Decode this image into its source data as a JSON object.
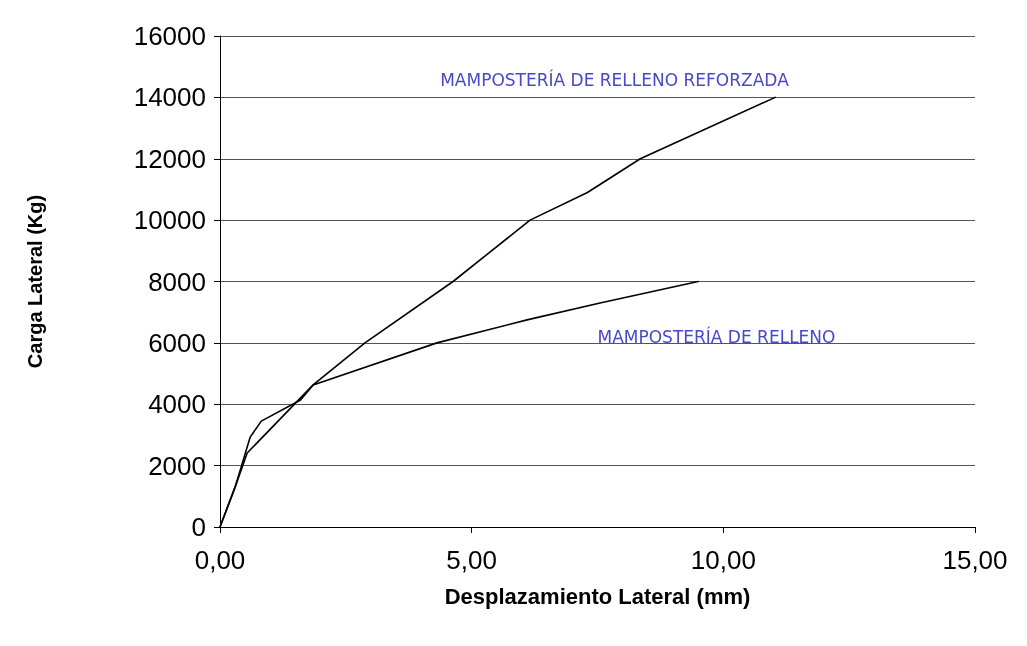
{
  "chart_data": {
    "type": "line",
    "xlabel": "Desplazamiento Lateral (mm)",
    "ylabel": "Carga Lateral (Kg)",
    "xlim": [
      0,
      15
    ],
    "xticks": [
      {
        "value": 0,
        "label": "0,00"
      },
      {
        "value": 5,
        "label": "5,00"
      },
      {
        "value": 10,
        "label": "10,00"
      },
      {
        "value": 15,
        "label": "15,00"
      }
    ],
    "ylim": [
      0,
      16000
    ],
    "yticks": [
      0,
      2000,
      4000,
      6000,
      8000,
      10000,
      12000,
      14000,
      16000
    ],
    "grid": "y",
    "legend": false,
    "marker": "none",
    "line_style": "solid",
    "series": [
      {
        "name": "MAMPOSTERÍA DE RELLENO REFORZADA",
        "color": "#000000",
        "x": [
          0,
          0.3,
          0.54,
          1.85,
          2.88,
          4.63,
          6.16,
          7.3,
          8.35,
          11.03
        ],
        "values": [
          0,
          1300,
          2410,
          4630,
          6000,
          8000,
          10000,
          10900,
          12000,
          14000
        ]
      },
      {
        "name": "MAMPOSTERÍA DE RELLENO",
        "color": "#000000",
        "x": [
          0,
          0.3,
          0.6,
          0.82,
          1.6,
          1.85,
          4.31,
          6.1,
          7.55,
          9.5
        ],
        "values": [
          0,
          1300,
          2930,
          3450,
          4140,
          4630,
          6000,
          6750,
          7300,
          8000
        ]
      }
    ]
  }
}
